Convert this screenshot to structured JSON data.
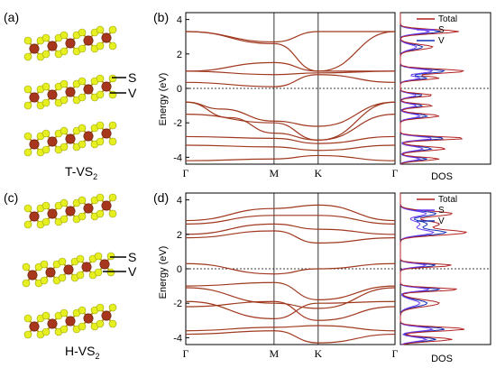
{
  "figure": {
    "panels": [
      {
        "id": "a",
        "label": "(a)",
        "structure": "T-VS",
        "subscript": "2",
        "atom_s": "S",
        "atom_v": "V"
      },
      {
        "id": "b",
        "label": "(b)"
      },
      {
        "id": "c",
        "label": "(c)",
        "structure": "H-VS",
        "subscript": "2",
        "atom_s": "S",
        "atom_v": "V"
      },
      {
        "id": "d",
        "label": "(d)"
      }
    ],
    "colors": {
      "band": "#a0391f",
      "total": "#b22222",
      "s": "#6a3df5",
      "v": "#1230b8",
      "sulfur": "#e6f020",
      "vanadium": "#a8361c"
    }
  },
  "chart_data": [
    {
      "type": "line",
      "panel": "b",
      "ylabel": "Energy (eV)",
      "ylim": [
        -4.4,
        4.4
      ],
      "yticks": [
        "4",
        "2",
        "0",
        "-2",
        "-4"
      ],
      "kpath": [
        "Γ",
        "M",
        "K",
        "Γ"
      ],
      "kpos": [
        0,
        1,
        1.5,
        2.37
      ],
      "fermi_level": 0,
      "series": [
        {
          "x": [
            0,
            1,
            1.5,
            2.37
          ],
          "y": [
            3.3,
            2.6,
            1.0,
            3.3
          ]
        },
        {
          "x": [
            0,
            1,
            1.5,
            2.37
          ],
          "y": [
            3.3,
            2.7,
            3.3,
            3.3
          ]
        },
        {
          "x": [
            0,
            1,
            1.5,
            2.37
          ],
          "y": [
            1.0,
            1.5,
            1.0,
            1.0
          ]
        },
        {
          "x": [
            0,
            1,
            1.5,
            2.37
          ],
          "y": [
            1.0,
            0.8,
            0.9,
            1.0
          ]
        },
        {
          "x": [
            0,
            1,
            1.5,
            2.37
          ],
          "y": [
            0.35,
            0.1,
            0.8,
            0.35
          ]
        },
        {
          "x": [
            0,
            0.4,
            1,
            1.5,
            2.37
          ],
          "y": [
            -0.8,
            -1.2,
            -1.9,
            -2.2,
            -0.8
          ]
        },
        {
          "x": [
            0,
            0.5,
            1,
            1.5,
            2.37
          ],
          "y": [
            -0.8,
            -1.7,
            -2.6,
            -3.0,
            -0.8
          ]
        },
        {
          "x": [
            0,
            1,
            1.5,
            2.37
          ],
          "y": [
            -1.5,
            -2.0,
            -3.0,
            -1.5
          ]
        },
        {
          "x": [
            0,
            1,
            1.5,
            2.37
          ],
          "y": [
            -2.8,
            -2.9,
            -3.2,
            -2.8
          ]
        },
        {
          "x": [
            0,
            1,
            1.5,
            2.37
          ],
          "y": [
            -3.3,
            -3.4,
            -3.6,
            -3.3
          ]
        },
        {
          "x": [
            0,
            1,
            1.5,
            2.37
          ],
          "y": [
            -4.2,
            -4.1,
            -3.9,
            -4.2
          ]
        }
      ]
    },
    {
      "type": "line",
      "panel": "b-dos",
      "xlabel": "DOS",
      "legend": [
        "Total",
        "S",
        "V"
      ],
      "legend_position": "top-right"
    },
    {
      "type": "line",
      "panel": "d",
      "ylabel": "Energy (eV)",
      "ylim": [
        -4.4,
        4.4
      ],
      "yticks": [
        "4",
        "2",
        "0",
        "-2",
        "-4"
      ],
      "kpath": [
        "Γ",
        "M",
        "K",
        "Γ"
      ],
      "kpos": [
        0,
        1,
        1.5,
        2.37
      ],
      "fermi_level": 0,
      "series": [
        {
          "x": [
            0,
            1,
            1.5,
            2.37
          ],
          "y": [
            2.8,
            3.5,
            3.7,
            2.8
          ]
        },
        {
          "x": [
            0,
            1,
            1.5,
            2.37
          ],
          "y": [
            2.6,
            3.1,
            3.1,
            2.6
          ]
        },
        {
          "x": [
            0,
            1,
            1.5,
            2.37
          ],
          "y": [
            2.0,
            2.6,
            2.3,
            2.0
          ]
        },
        {
          "x": [
            0,
            1,
            1.5,
            2.37
          ],
          "y": [
            1.8,
            2.2,
            1.5,
            1.8
          ]
        },
        {
          "x": [
            0,
            1,
            1.5,
            2.37
          ],
          "y": [
            0.3,
            -0.3,
            0.0,
            0.3
          ]
        },
        {
          "x": [
            0,
            1,
            1.5,
            2.37
          ],
          "y": [
            -1.0,
            -0.8,
            -1.8,
            -1.0
          ]
        },
        {
          "x": [
            0,
            1,
            1.5,
            2.37
          ],
          "y": [
            -1.1,
            -2.0,
            -2.3,
            -1.1
          ]
        },
        {
          "x": [
            0,
            1,
            1.5,
            2.37
          ],
          "y": [
            -1.9,
            -2.9,
            -2.0,
            -1.9
          ]
        },
        {
          "x": [
            0,
            1,
            1.5,
            2.37
          ],
          "y": [
            -2.2,
            -1.9,
            -3.0,
            -2.2
          ]
        },
        {
          "x": [
            0,
            1,
            1.5,
            2.37
          ],
          "y": [
            -3.6,
            -3.4,
            -3.3,
            -3.6
          ]
        },
        {
          "x": [
            0,
            1,
            1.5,
            2.37
          ],
          "y": [
            -3.8,
            -3.6,
            -4.3,
            -3.8
          ]
        }
      ]
    },
    {
      "type": "line",
      "panel": "d-dos",
      "xlabel": "DOS",
      "legend": [
        "Total",
        "S",
        "V"
      ],
      "legend_position": "top-right"
    }
  ]
}
